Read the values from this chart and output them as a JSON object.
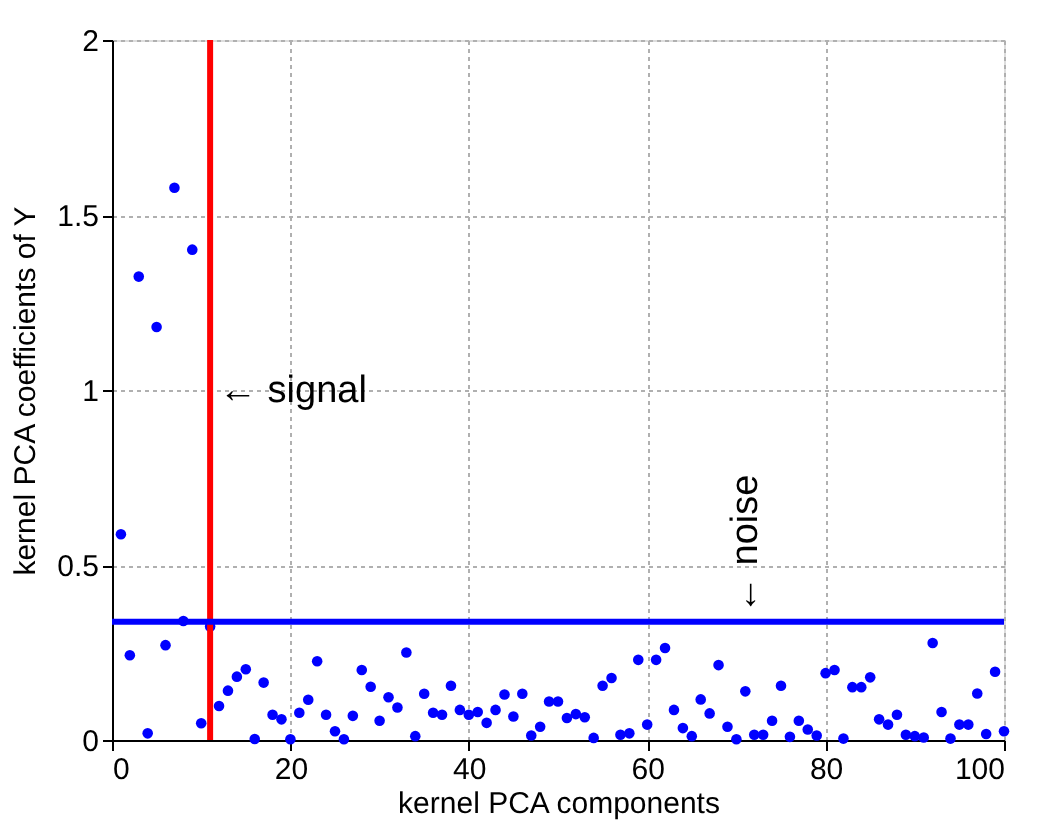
{
  "chart_data": {
    "type": "scatter",
    "xlabel": "kernel PCA components",
    "ylabel": "kernel PCA coefficients of Y",
    "x": [
      1,
      2,
      3,
      4,
      5,
      6,
      7,
      8,
      9,
      10,
      11,
      12,
      13,
      14,
      15,
      16,
      17,
      18,
      19,
      20,
      21,
      22,
      23,
      24,
      25,
      26,
      27,
      28,
      29,
      30,
      31,
      32,
      33,
      34,
      35,
      36,
      37,
      38,
      39,
      40,
      41,
      42,
      43,
      44,
      45,
      46,
      47,
      48,
      49,
      50,
      51,
      52,
      53,
      54,
      55,
      56,
      57,
      58,
      59,
      60,
      61,
      62,
      63,
      64,
      65,
      66,
      67,
      68,
      69,
      70,
      71,
      72,
      73,
      74,
      75,
      76,
      77,
      78,
      79,
      80,
      81,
      82,
      83,
      84,
      85,
      86,
      87,
      88,
      89,
      90,
      91,
      92,
      93,
      94,
      95,
      96,
      97,
      98,
      99,
      100
    ],
    "series": [
      {
        "color": "#0000ff",
        "values": [
          0.588,
          0.242,
          1.324,
          0.019,
          1.18,
          0.271,
          1.578,
          0.34,
          1.401,
          0.048,
          0.324,
          0.097,
          0.141,
          0.181,
          0.202,
          0.003,
          0.164,
          0.072,
          0.059,
          0.002,
          0.078,
          0.115,
          0.225,
          0.072,
          0.025,
          0.002,
          0.069,
          0.2,
          0.152,
          0.055,
          0.122,
          0.093,
          0.25,
          0.011,
          0.132,
          0.078,
          0.072,
          0.155,
          0.086,
          0.072,
          0.08,
          0.049,
          0.086,
          0.13,
          0.067,
          0.132,
          0.013,
          0.038,
          0.11,
          0.11,
          0.063,
          0.074,
          0.065,
          0.006,
          0.155,
          0.177,
          0.015,
          0.019,
          0.229,
          0.044,
          0.229,
          0.263,
          0.086,
          0.034,
          0.011,
          0.116,
          0.076,
          0.214,
          0.038,
          0.002,
          0.139,
          0.015,
          0.015,
          0.055,
          0.155,
          0.009,
          0.055,
          0.03,
          0.013,
          0.191,
          0.2,
          0.004,
          0.151,
          0.151,
          0.179,
          0.059,
          0.044,
          0.072,
          0.015,
          0.011,
          0.007,
          0.277,
          0.08,
          0.004,
          0.044,
          0.044,
          0.133,
          0.017,
          0.195,
          0.025
        ]
      }
    ],
    "xlim": [
      0,
      100
    ],
    "xticks": [
      0,
      20,
      40,
      60,
      80,
      100
    ],
    "ylim": [
      0,
      2
    ],
    "yticks": [
      0,
      0.5,
      1,
      1.5,
      2
    ],
    "grid": true,
    "marker": "circle",
    "ref_lines": [
      {
        "axis": "x",
        "value": 11,
        "color": "#ff0000"
      },
      {
        "axis": "y",
        "value": 0.338,
        "color": "#0000ff"
      }
    ],
    "annotations": [
      {
        "text": "← signal",
        "x": 12,
        "y": 1
      },
      {
        "text": "← noise",
        "x": 71,
        "y": 0.36
      }
    ]
  }
}
